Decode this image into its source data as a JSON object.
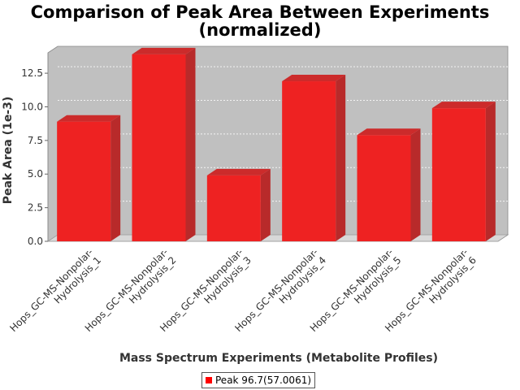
{
  "chart_data": {
    "type": "bar",
    "title": "Comparison of Peak Area Between Experiments",
    "subtitle": "(normalized)",
    "xlabel": "Mass Spectrum Experiments (Metabolite Profiles)",
    "ylabel": "Peak Area (1e-3)",
    "ylim": [
      0,
      14.5
    ],
    "yticks": [
      "0.0",
      "2.5",
      "5.0",
      "7.5",
      "10.0",
      "12.5"
    ],
    "categories": [
      [
        "Hops_GC-MS-Nonpolar-",
        "Hydrolysis_1"
      ],
      [
        "Hops_GC-MS-Nonpolar-",
        "Hydrolysis_2"
      ],
      [
        "Hops_GC-MS-Nonpolar-",
        "Hydrolysis_3"
      ],
      [
        "Hops_GC-MS-Nonpolar-",
        "Hydrolysis_4"
      ],
      [
        "Hops_GC-MS-Nonpolar-",
        "Hydrolysis_5"
      ],
      [
        "Hops_GC-MS-Nonpolar-",
        "Hydrolysis_6"
      ]
    ],
    "series": [
      {
        "name": "Peak 96.7(57.0061)",
        "values": [
          8.9,
          13.9,
          4.9,
          11.9,
          7.9,
          9.9
        ]
      }
    ],
    "grid": true,
    "legend": "bottom-center",
    "colors": {
      "bar_front": "#ee2222",
      "bar_side": "#b82a2a",
      "bar_top": "#cc2b2b",
      "plot_bg": "#c0c0c0",
      "floor": "#d8d8d8"
    }
  }
}
